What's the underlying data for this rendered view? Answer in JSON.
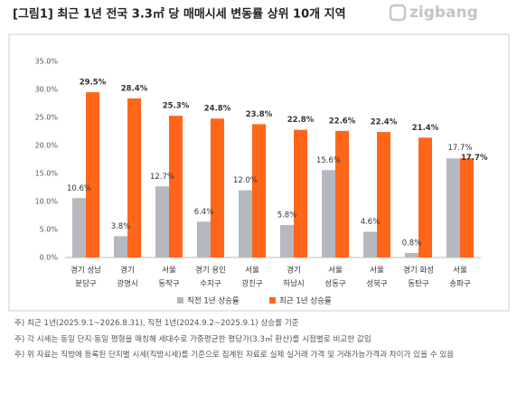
{
  "header": {
    "title": "[그림1] 최근 1년 전국 3.3㎡ 당 매매시세 변동률 상위 10개 지역",
    "logo": "zigbang"
  },
  "chart_data": {
    "type": "bar",
    "categories": [
      [
        "경기 성남",
        "분당구"
      ],
      [
        "경기",
        "광명시"
      ],
      [
        "서울",
        "동작구"
      ],
      [
        "경기 용인",
        "수지구"
      ],
      [
        "서울",
        "광진구"
      ],
      [
        "경기",
        "하남시"
      ],
      [
        "서울",
        "성동구"
      ],
      [
        "서울",
        "성북구"
      ],
      [
        "경기 화성",
        "동탄구"
      ],
      [
        "서울",
        "송파구"
      ]
    ],
    "series": [
      {
        "name": "직전 1년 상승률",
        "color": "#b5b9bf",
        "values": [
          10.6,
          3.8,
          12.7,
          6.4,
          12.0,
          5.8,
          15.6,
          4.6,
          0.8,
          17.7
        ],
        "value_labels": [
          "10.6%",
          "3.8%",
          "12.7%",
          "6.4%",
          "12.0%",
          "5.8%",
          "15.6%",
          "4.6%",
          "0.8%",
          "17.7%"
        ]
      },
      {
        "name": "최근 1년 상승률",
        "color": "#ff661a",
        "values": [
          29.5,
          28.4,
          25.3,
          24.8,
          23.8,
          22.8,
          22.6,
          22.4,
          21.4,
          17.7
        ],
        "value_labels": [
          "29.5%",
          "28.4%",
          "25.3%",
          "24.8%",
          "23.8%",
          "22.8%",
          "22.6%",
          "22.4%",
          "21.4%",
          "17.7%"
        ]
      }
    ],
    "ylim": [
      0,
      35
    ],
    "yticks": [
      {
        "value": 0,
        "label": "0.0%"
      },
      {
        "value": 5,
        "label": "5.0%"
      },
      {
        "value": 10,
        "label": "10.0%"
      },
      {
        "value": 15,
        "label": "15.0%"
      },
      {
        "value": 20,
        "label": "20.0%"
      },
      {
        "value": 25,
        "label": "25.0%"
      },
      {
        "value": 30,
        "label": "30.0%"
      },
      {
        "value": 35,
        "label": "35.0%"
      }
    ],
    "grid": false
  },
  "notes": [
    "주) 최근 1년(2025.9.1~2026.8.31), 직전 1년(2024.9.2~2025.9.1) 상승률 기준",
    "주) 각 시세는 동일 단지·동일 평형을 매칭해 세대수로 가중평균한 평당가(3.3㎡ 환산)를 시점별로 비교한 값임",
    "주) 위 자료는 직방에 등록된 단지별 시세(직방시세)를 기준으로 집계된 자료로 실제 실거래 가격 및 거래가능가격과 차이가 있을 수 있음"
  ]
}
